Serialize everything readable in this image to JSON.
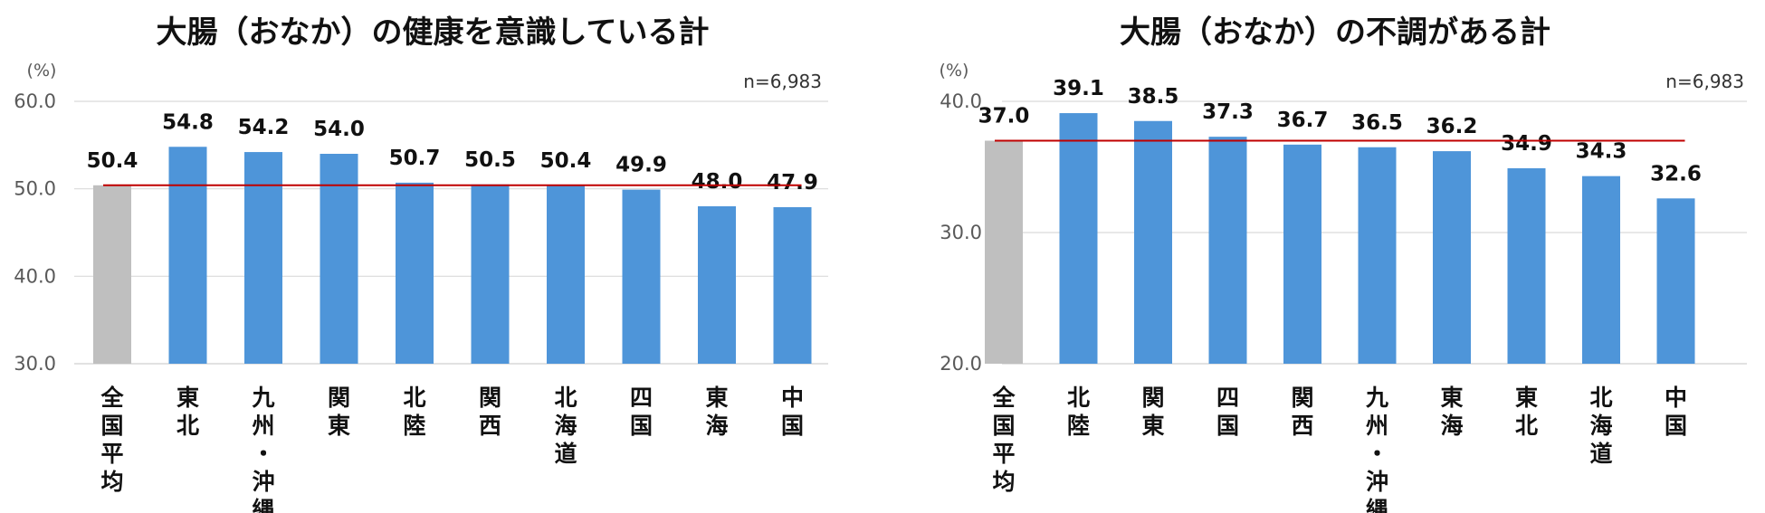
{
  "chart_data": [
    {
      "type": "bar",
      "title": "大腸（おなか）の健康を意識している計",
      "unit": "(%)",
      "n_label": "n=6,983",
      "ylim": [
        30,
        60
      ],
      "yticks": [
        60,
        50,
        40,
        30
      ],
      "ytick_labels": [
        "60.0",
        "50.0",
        "40.0",
        "30.0"
      ],
      "categories": [
        "全国平均",
        "東北",
        "九州・沖縄",
        "関東",
        "北陸",
        "関西",
        "北海道",
        "四国",
        "東海",
        "中国"
      ],
      "values": [
        50.4,
        54.8,
        54.2,
        54.0,
        50.7,
        50.5,
        50.4,
        49.9,
        48.0,
        47.9
      ],
      "value_labels": [
        "50.4",
        "54.8",
        "54.2",
        "54.0",
        "50.7",
        "50.5",
        "50.4",
        "49.9",
        "48.0",
        "47.9"
      ],
      "reference_line": 50.4,
      "colors": {
        "average_bar": "#bfbfbf",
        "bar": "#4e95d9",
        "reference_line": "#c00000",
        "grid": "#d9d9d9"
      }
    },
    {
      "type": "bar",
      "title": "大腸（おなか）の不調がある計",
      "unit": "(%)",
      "n_label": "n=6,983",
      "ylim": [
        20,
        40
      ],
      "yticks": [
        40,
        30,
        20
      ],
      "ytick_labels": [
        "40.0",
        "30.0",
        "20.0"
      ],
      "categories": [
        "全国平均",
        "北陸",
        "関東",
        "四国",
        "関西",
        "九州・沖縄",
        "東海",
        "東北",
        "北海道",
        "中国"
      ],
      "values": [
        37.0,
        39.1,
        38.5,
        37.3,
        36.7,
        36.5,
        36.2,
        34.9,
        34.3,
        32.6
      ],
      "value_labels": [
        "37.0",
        "39.1",
        "38.5",
        "37.3",
        "36.7",
        "36.5",
        "36.2",
        "34.9",
        "34.3",
        "32.6"
      ],
      "reference_line": 37.0,
      "colors": {
        "average_bar": "#bfbfbf",
        "bar": "#4e95d9",
        "reference_line": "#c00000",
        "grid": "#d9d9d9"
      }
    }
  ]
}
